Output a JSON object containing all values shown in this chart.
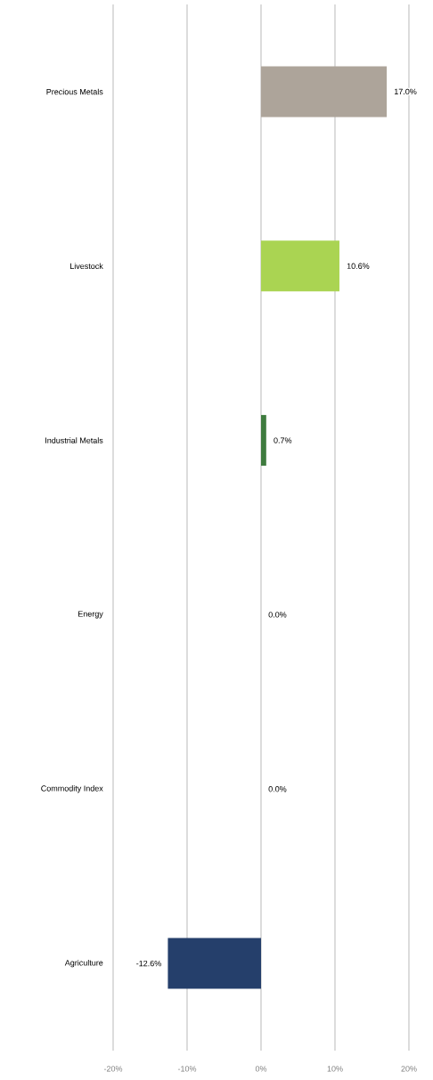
{
  "chart_data": {
    "type": "bar",
    "orientation": "horizontal",
    "categories": [
      "Precious Metals",
      "Livestock",
      "Industrial Metals",
      "Energy",
      "Commodity Index",
      "Agriculture"
    ],
    "values": [
      17.0,
      10.6,
      0.7,
      0.0,
      0.0,
      -12.6
    ],
    "colors": [
      "#ada49a",
      "#aad452",
      "#3e7b3e",
      "#3a9a9a",
      "#bfbfbf",
      "#253f6b"
    ],
    "value_labels": [
      "17.0%",
      "10.6%",
      "0.7%",
      "0.0%",
      "0.0%",
      "-12.6%"
    ],
    "xlim": [
      -20,
      20
    ],
    "xticks": [
      {
        "value": -20,
        "label": "-20%"
      },
      {
        "value": -10,
        "label": "-10%"
      },
      {
        "value": 0,
        "label": "0%"
      },
      {
        "value": 10,
        "label": "10%"
      },
      {
        "value": 20,
        "label": "20%"
      }
    ],
    "grid": "x"
  }
}
